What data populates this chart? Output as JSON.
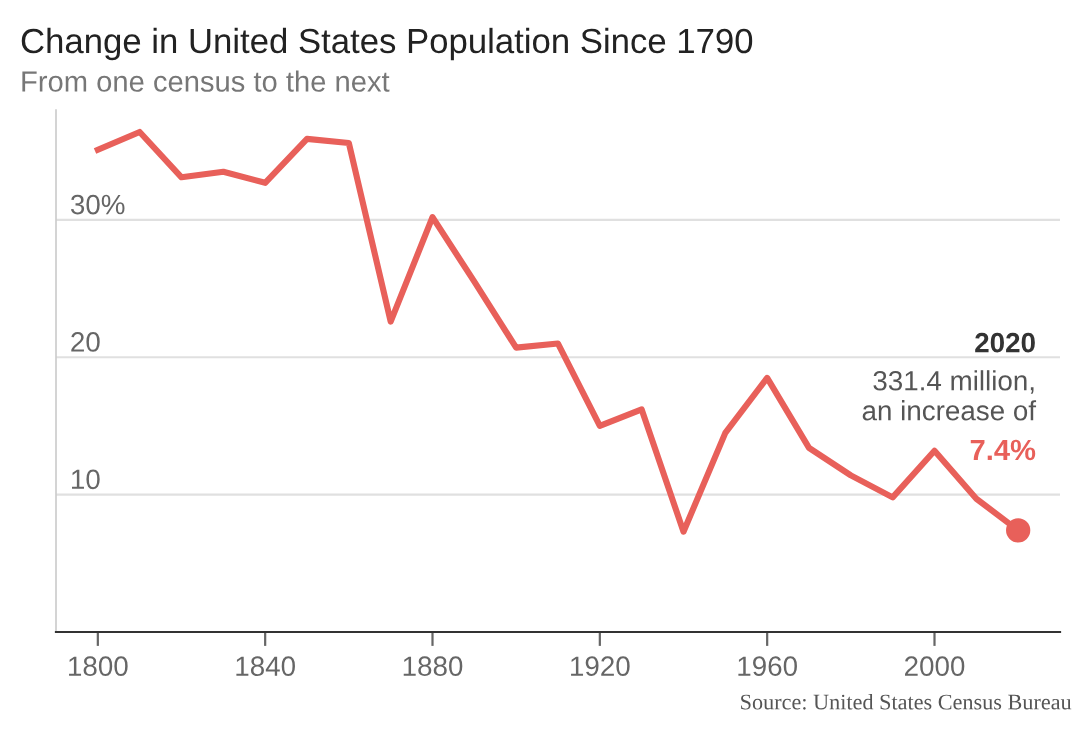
{
  "chart_data": {
    "type": "line",
    "title": "Change in United States Population Since 1790",
    "subtitle": "From one census to the next",
    "x": [
      1800,
      1810,
      1820,
      1830,
      1840,
      1850,
      1860,
      1870,
      1880,
      1890,
      1900,
      1910,
      1920,
      1930,
      1940,
      1950,
      1960,
      1970,
      1980,
      1990,
      2000,
      2010,
      2020
    ],
    "series": [
      {
        "color": "#e8605a",
        "marker": "none",
        "values": [
          35.1,
          36.4,
          33.1,
          33.5,
          32.7,
          35.9,
          35.6,
          22.6,
          30.2,
          25.5,
          20.7,
          21.0,
          15.0,
          16.2,
          7.3,
          14.5,
          18.5,
          13.4,
          11.4,
          9.8,
          13.2,
          9.7,
          7.4
        ]
      },
      {
        "type": "scatter",
        "color": "#e8605a",
        "marker": "circle",
        "x": [
          2020
        ],
        "values": [
          7.4
        ]
      }
    ],
    "xlim": [
      1790,
      2030
    ],
    "ylim": [
      0,
      38
    ],
    "xticks": [
      1800,
      1840,
      1880,
      1920,
      1960,
      2000
    ],
    "yticks": [
      {
        "value": 10,
        "label": "10"
      },
      {
        "value": 20,
        "label": "20"
      },
      {
        "value": 30,
        "label": "30%"
      }
    ],
    "grid": "y",
    "legend": false,
    "annotations": [
      "2020",
      "331.4 million,\nan increase of",
      "7.4%",
      "Source: United States Census Bureau"
    ]
  }
}
